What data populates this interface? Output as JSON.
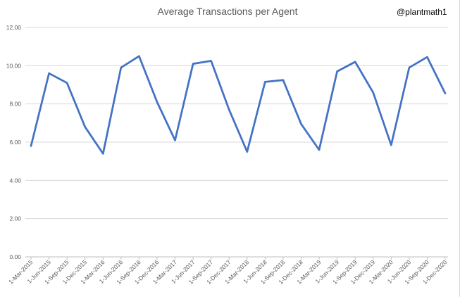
{
  "chart_data": {
    "type": "line",
    "title": "Average Transactions per Agent",
    "xlabel": "",
    "ylabel": "",
    "ylim": [
      0,
      12
    ],
    "y_ticks": [
      "0.00",
      "2.00",
      "4.00",
      "6.00",
      "8.00",
      "10.00",
      "12.00"
    ],
    "grid": "horizontal",
    "legend": "none",
    "categories": [
      "1-Mar-2015",
      "1-Jun-2015",
      "1-Sep-2015",
      "1-Dec-2015",
      "1-Mar-2016",
      "1-Jun-2016",
      "1-Sep-2016",
      "1-Dec-2016",
      "1-Mar-2017",
      "1-Jun-2017",
      "1-Sep-2017",
      "1-Dec-2017",
      "1-Mar-2018",
      "1-Jun-2018",
      "1-Sep-2018",
      "1-Dec-2018",
      "1-Mar-2019",
      "1-Jun-2019",
      "1-Sep-2019",
      "1-Dec-2019",
      "1-Mar-2020",
      "1-Jun-2020",
      "1-Sep-2020",
      "1-Dec-2020"
    ],
    "series": [
      {
        "values": [
          5.8,
          9.6,
          9.1,
          6.8,
          5.4,
          9.9,
          10.5,
          8.1,
          6.1,
          10.1,
          10.25,
          7.7,
          5.5,
          9.15,
          9.25,
          6.95,
          5.6,
          9.7,
          10.2,
          8.6,
          5.85,
          9.9,
          10.45,
          8.55
        ],
        "color": "#4472C4"
      }
    ]
  },
  "watermark": "@plantmath1"
}
